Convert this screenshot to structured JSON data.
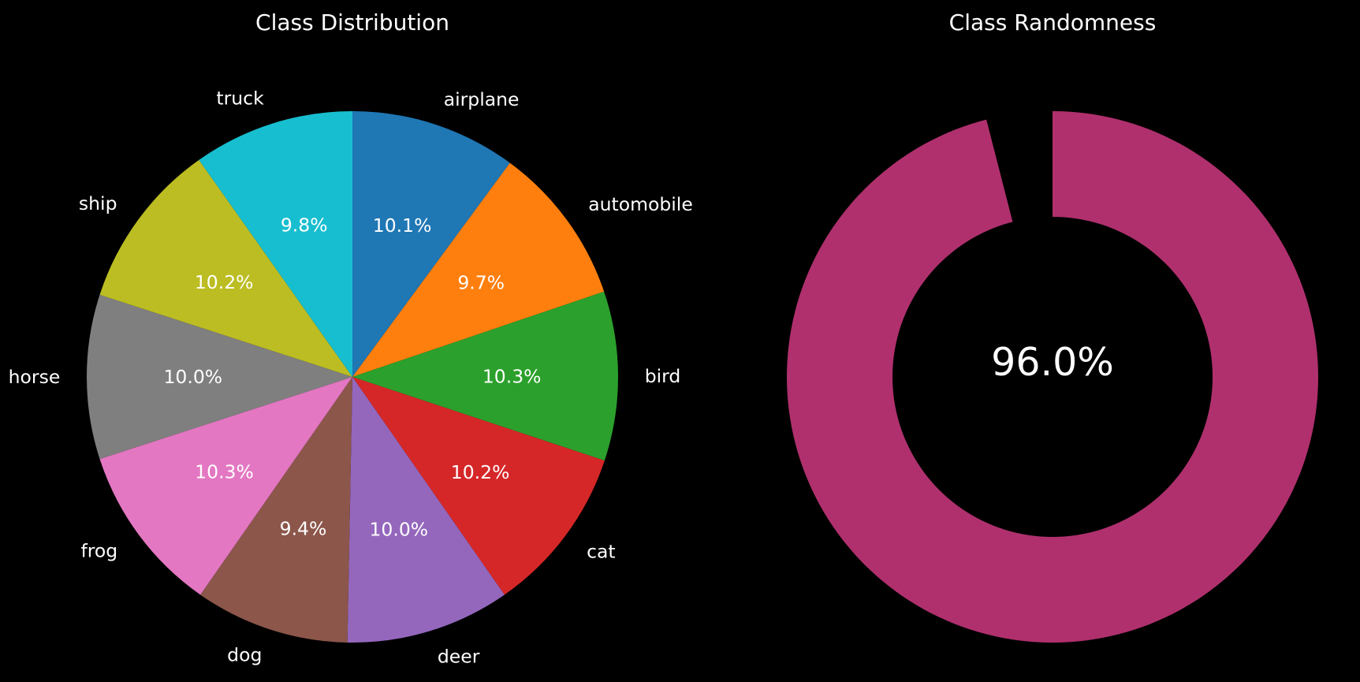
{
  "chart_data": [
    {
      "type": "pie",
      "title": "Class Distribution",
      "categories": [
        "airplane",
        "automobile",
        "bird",
        "cat",
        "deer",
        "dog",
        "frog",
        "horse",
        "ship",
        "truck"
      ],
      "values": [
        10.1,
        9.7,
        10.3,
        10.2,
        10.0,
        9.4,
        10.3,
        10.0,
        10.2,
        9.8
      ],
      "value_labels": [
        "10.1%",
        "9.7%",
        "10.3%",
        "10.2%",
        "10.0%",
        "9.4%",
        "10.3%",
        "10.0%",
        "10.2%",
        "9.8%"
      ],
      "colors": [
        "#1f77b4",
        "#ff7f0e",
        "#2ca02c",
        "#d62728",
        "#9467bd",
        "#8c564b",
        "#e377c2",
        "#7f7f7f",
        "#bcbd22",
        "#17becf"
      ],
      "start_angle": "top",
      "direction": "clockwise"
    },
    {
      "type": "pie",
      "title": "Class Randomness",
      "values": [
        96.0,
        4.0
      ],
      "center_label": "96.0%",
      "style": "donut",
      "colors": [
        "#b0306e",
        "#000000"
      ],
      "start_angle": "top",
      "direction": "clockwise"
    }
  ]
}
